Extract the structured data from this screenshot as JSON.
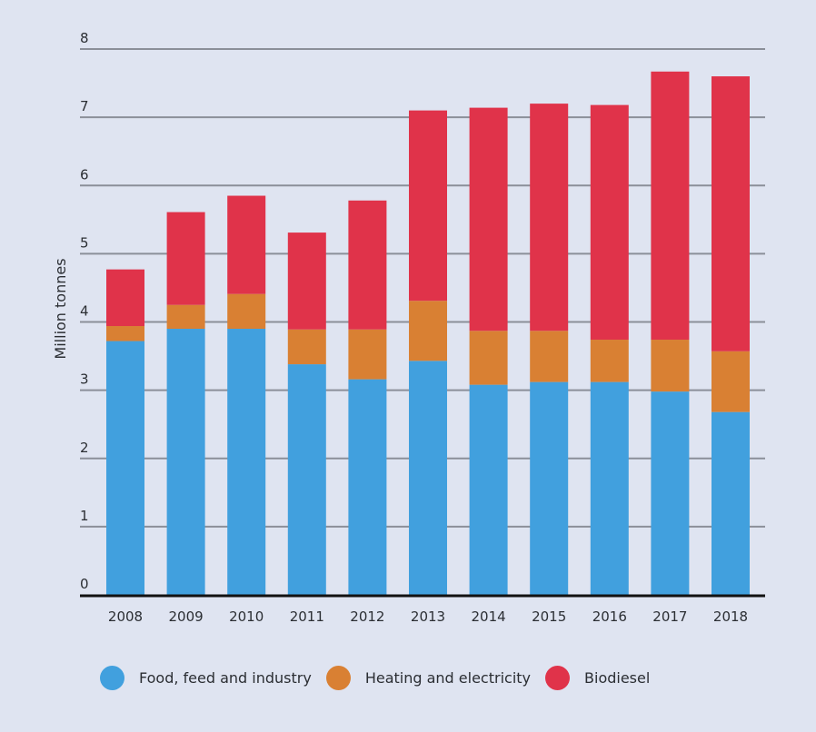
{
  "chart_data": {
    "type": "bar",
    "stacked": true,
    "title": "",
    "xlabel": "",
    "ylabel": "Million tonnes",
    "ylim": [
      0,
      8
    ],
    "yticks": [
      0,
      1,
      2,
      3,
      4,
      5,
      6,
      7,
      8
    ],
    "grid": true,
    "legend_position": "bottom",
    "categories": [
      "2008",
      "2009",
      "2010",
      "2011",
      "2012",
      "2013",
      "2014",
      "2015",
      "2016",
      "2017",
      "2018"
    ],
    "series": [
      {
        "name": "Food, feed and industry",
        "color": "#41a0de",
        "values": [
          3.72,
          3.9,
          3.9,
          3.38,
          3.16,
          3.43,
          3.08,
          3.12,
          3.12,
          2.98,
          2.68
        ]
      },
      {
        "name": "Heating and electricity",
        "color": "#d98033",
        "values": [
          0.22,
          0.35,
          0.51,
          0.51,
          0.73,
          0.88,
          0.79,
          0.75,
          0.62,
          0.76,
          0.89
        ]
      },
      {
        "name": "Biodiesel",
        "color": "#e0334a",
        "values": [
          0.83,
          1.36,
          1.44,
          1.42,
          1.89,
          2.79,
          3.27,
          3.33,
          3.44,
          3.93,
          4.03
        ]
      }
    ]
  },
  "legend": {
    "items": [
      {
        "label": "Food, feed and industry",
        "color": "#41a0de"
      },
      {
        "label": "Heating and electricity",
        "color": "#d98033"
      },
      {
        "label": "Biodiesel",
        "color": "#e0334a"
      }
    ]
  }
}
